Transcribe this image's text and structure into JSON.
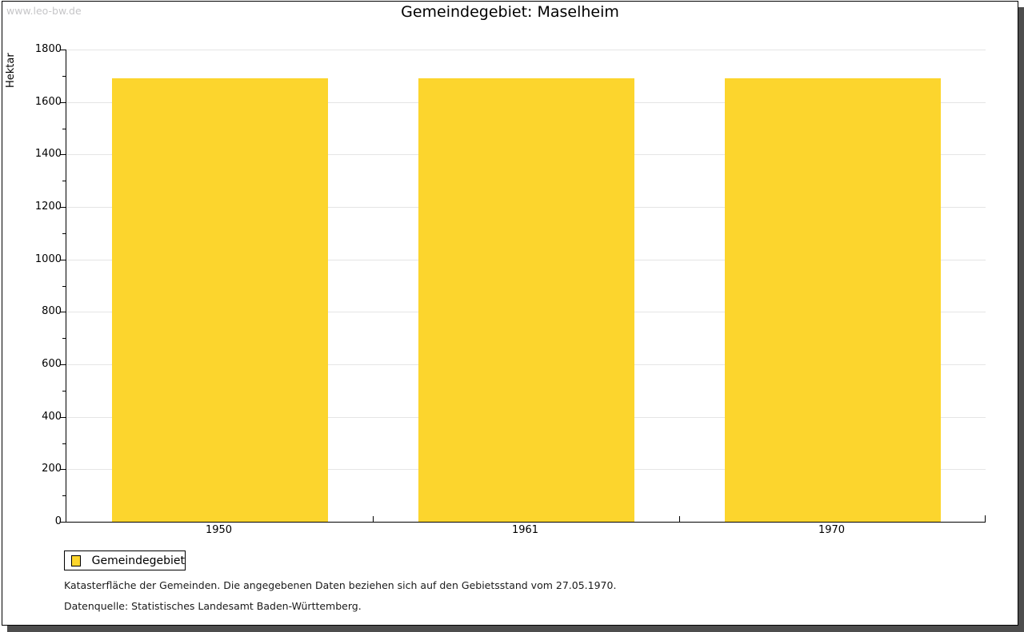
{
  "watermark": "www.leo-bw.de",
  "title": "Gemeindegebiet: Maselheim",
  "chart_data": {
    "type": "bar",
    "title": "Gemeindegebiet: Maselheim",
    "categories": [
      "1950",
      "1961",
      "1970"
    ],
    "series": [
      {
        "name": "Gemeindegebiet",
        "values": [
          1690,
          1690,
          1690
        ]
      }
    ],
    "xlabel": "",
    "ylabel": "Hektar",
    "ylim": [
      0,
      1800
    ],
    "y_major_step": 200,
    "y_minor_step": 100,
    "grid": true,
    "legend_position": "bottom-left"
  },
  "legend": {
    "label": "Gemeindegebiet"
  },
  "footnotes": [
    "Katasterfläche der Gemeinden. Die angegebenen Daten beziehen sich auf den Gebietsstand vom 27.05.1970.",
    "Datenquelle: Statistisches Landesamt Baden-Württemberg."
  ],
  "colors": {
    "bar": "#FCD52D",
    "grid": "#E5E5E5",
    "axis": "#000000",
    "watermark": "#C6C6C8",
    "shadow": "#4D4D4D"
  }
}
